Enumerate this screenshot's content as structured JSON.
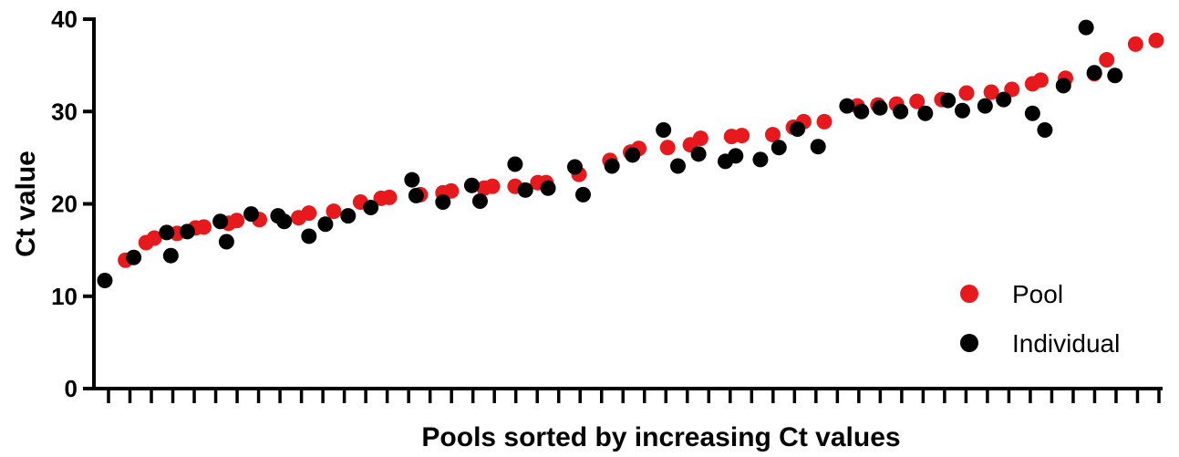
{
  "chart_data": {
    "type": "scatter",
    "title": "",
    "xlabel": "Pools sorted by increasing Ct values",
    "ylabel": "Ct value",
    "ylim": [
      0,
      40
    ],
    "yticks": [
      "0",
      "10",
      "20",
      "30",
      "40"
    ],
    "x_tick_count": 50,
    "grid": false,
    "legend_position": "bottom-right",
    "series": [
      {
        "name": "Pool",
        "color": "#e8191c",
        "points": [
          [
            1,
            13.9
          ],
          [
            2,
            15.8
          ],
          [
            2.4,
            16.3
          ],
          [
            3.5,
            16.8
          ],
          [
            4.4,
            17.4
          ],
          [
            4.8,
            17.5
          ],
          [
            6.0,
            17.9
          ],
          [
            6.4,
            18.2
          ],
          [
            7.5,
            18.3
          ],
          [
            9.4,
            18.5
          ],
          [
            9.9,
            19.0
          ],
          [
            11.1,
            19.2
          ],
          [
            12.4,
            20.2
          ],
          [
            13.4,
            20.6
          ],
          [
            13.8,
            20.7
          ],
          [
            15.3,
            21.0
          ],
          [
            16.4,
            21.2
          ],
          [
            16.8,
            21.4
          ],
          [
            18.4,
            21.7
          ],
          [
            18.8,
            21.9
          ],
          [
            19.9,
            21.9
          ],
          [
            21.0,
            22.3
          ],
          [
            21.4,
            22.3
          ],
          [
            23.0,
            23.2
          ],
          [
            24.5,
            24.7
          ],
          [
            25.5,
            25.6
          ],
          [
            25.9,
            26.0
          ],
          [
            27.3,
            26.1
          ],
          [
            28.4,
            26.4
          ],
          [
            28.9,
            27.1
          ],
          [
            30.4,
            27.3
          ],
          [
            30.9,
            27.4
          ],
          [
            32.4,
            27.5
          ],
          [
            33.4,
            28.3
          ],
          [
            33.9,
            28.9
          ],
          [
            34.9,
            28.9
          ],
          [
            36.5,
            30.6
          ],
          [
            37.5,
            30.7
          ],
          [
            38.4,
            30.8
          ],
          [
            39.4,
            31.1
          ],
          [
            40.6,
            31.3
          ],
          [
            41.8,
            32.0
          ],
          [
            43.0,
            32.1
          ],
          [
            44.0,
            32.4
          ],
          [
            45.0,
            33.0
          ],
          [
            45.4,
            33.4
          ],
          [
            46.6,
            33.6
          ],
          [
            48.0,
            34.1
          ],
          [
            48.6,
            35.6
          ],
          [
            50.0,
            37.3
          ],
          [
            51.0,
            37.7
          ]
        ]
      },
      {
        "name": "Individual",
        "color": "#000000",
        "points": [
          [
            0,
            11.7
          ],
          [
            1.4,
            14.2
          ],
          [
            3.0,
            16.9
          ],
          [
            3.2,
            14.4
          ],
          [
            4.0,
            17.0
          ],
          [
            5.6,
            18.1
          ],
          [
            5.9,
            15.9
          ],
          [
            7.1,
            18.9
          ],
          [
            8.4,
            18.7
          ],
          [
            8.7,
            18.1
          ],
          [
            9.9,
            16.5
          ],
          [
            10.7,
            17.8
          ],
          [
            11.8,
            18.7
          ],
          [
            12.9,
            19.6
          ],
          [
            14.9,
            22.6
          ],
          [
            15.1,
            20.9
          ],
          [
            16.4,
            20.2
          ],
          [
            17.8,
            22.0
          ],
          [
            18.2,
            20.3
          ],
          [
            19.9,
            24.3
          ],
          [
            20.4,
            21.5
          ],
          [
            21.5,
            21.7
          ],
          [
            22.8,
            24.0
          ],
          [
            23.2,
            21.0
          ],
          [
            24.6,
            24.1
          ],
          [
            25.6,
            25.3
          ],
          [
            27.1,
            28.0
          ],
          [
            27.8,
            24.1
          ],
          [
            28.8,
            25.4
          ],
          [
            30.1,
            24.6
          ],
          [
            30.6,
            25.2
          ],
          [
            31.8,
            24.8
          ],
          [
            32.7,
            26.1
          ],
          [
            33.6,
            28.1
          ],
          [
            34.6,
            26.2
          ],
          [
            36.0,
            30.6
          ],
          [
            36.7,
            30.0
          ],
          [
            37.6,
            30.4
          ],
          [
            38.6,
            30.0
          ],
          [
            39.8,
            29.8
          ],
          [
            40.9,
            31.2
          ],
          [
            41.6,
            30.1
          ],
          [
            42.7,
            30.6
          ],
          [
            43.6,
            31.3
          ],
          [
            45.0,
            29.8
          ],
          [
            45.6,
            28.0
          ],
          [
            46.5,
            32.8
          ],
          [
            47.6,
            39.1
          ],
          [
            48.0,
            34.2
          ],
          [
            49.0,
            33.9
          ]
        ]
      }
    ]
  }
}
